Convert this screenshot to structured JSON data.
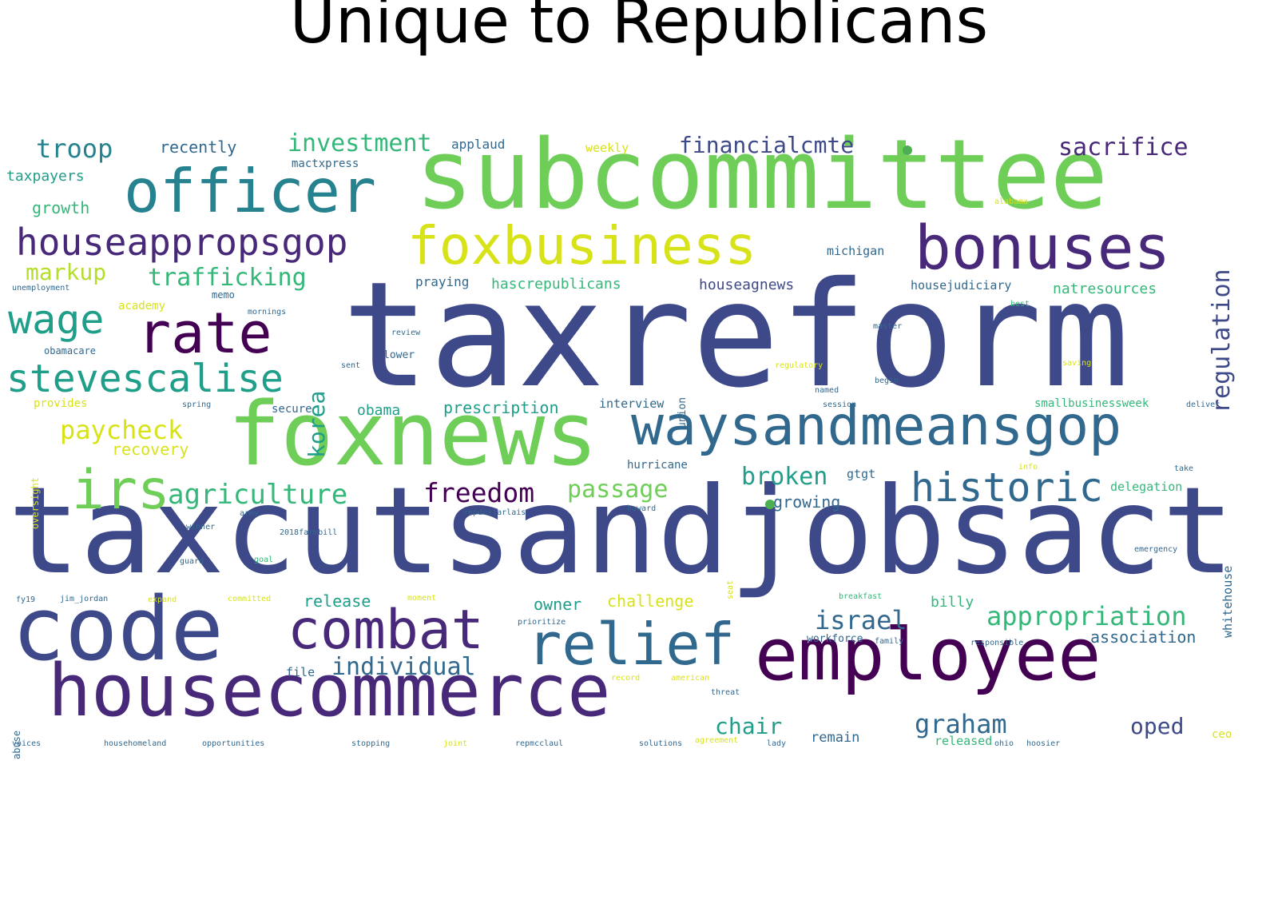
{
  "title": "Unique to Republicans",
  "colors": {
    "v1": "#440154",
    "v2": "#482878",
    "v3": "#3e4989",
    "v4": "#31688e",
    "v5": "#26828e",
    "v6": "#1f9e89",
    "v7": "#35b779",
    "v8": "#6ece58",
    "v9": "#b5de2b",
    "v10": "#d8e219",
    "bullet": "#4caf50"
  },
  "words": [
    {
      "text": "taxreform",
      "color": "v3",
      "weight": 1.0
    },
    {
      "text": "taxcutsandjobsact",
      "color": "v3",
      "weight": 0.95
    },
    {
      "text": "subcommittee",
      "color": "v8",
      "weight": 0.9
    },
    {
      "text": "foxnews",
      "color": "v8",
      "weight": 0.8
    },
    {
      "text": "code",
      "color": "v3",
      "weight": 0.8
    },
    {
      "text": "employee",
      "color": "v1",
      "weight": 0.75
    },
    {
      "text": "housecommerce",
      "color": "v2",
      "weight": 0.7
    },
    {
      "text": "waysandmeansgop",
      "color": "v4",
      "weight": 0.6
    },
    {
      "text": "officer",
      "color": "v5",
      "weight": 0.6
    },
    {
      "text": "bonuses",
      "color": "v2",
      "weight": 0.6
    },
    {
      "text": "foxbusiness",
      "color": "v10",
      "weight": 0.55
    },
    {
      "text": "rate",
      "color": "v1",
      "weight": 0.5
    },
    {
      "text": "relief",
      "color": "v4",
      "weight": 0.5
    },
    {
      "text": "combat",
      "color": "v2",
      "weight": 0.5
    },
    {
      "text": "irs",
      "color": "v8",
      "weight": 0.5
    },
    {
      "text": "houseappropsgop",
      "color": "v2",
      "weight": 0.45
    },
    {
      "text": "stevescalise",
      "color": "v6",
      "weight": 0.45
    },
    {
      "text": "historic",
      "color": "v4",
      "weight": 0.45
    },
    {
      "text": "wage",
      "color": "v6",
      "weight": 0.4
    },
    {
      "text": "agriculture",
      "color": "v7",
      "weight": 0.35
    },
    {
      "text": "freedom",
      "color": "v1",
      "weight": 0.35
    },
    {
      "text": "appropriation",
      "color": "v7",
      "weight": 0.3
    },
    {
      "text": "israel",
      "color": "v4",
      "weight": 0.3
    },
    {
      "text": "individual",
      "color": "v4",
      "weight": 0.3
    },
    {
      "text": "graham",
      "color": "v4",
      "weight": 0.3
    },
    {
      "text": "troop",
      "color": "v5",
      "weight": 0.3
    },
    {
      "text": "investment",
      "color": "v7",
      "weight": 0.3
    },
    {
      "text": "financialcmte",
      "color": "v3",
      "weight": 0.3
    },
    {
      "text": "sacrifice",
      "color": "v2",
      "weight": 0.3
    },
    {
      "text": "regulation",
      "color": "v3",
      "weight": 0.3
    },
    {
      "text": "trafficking",
      "color": "v7",
      "weight": 0.3
    },
    {
      "text": "markup",
      "color": "v9",
      "weight": 0.3
    },
    {
      "text": "paycheck",
      "color": "v10",
      "weight": 0.3
    },
    {
      "text": "passage",
      "color": "v8",
      "weight": 0.3
    },
    {
      "text": "broken",
      "color": "v6",
      "weight": 0.3
    },
    {
      "text": "korea",
      "color": "v6",
      "weight": 0.28
    },
    {
      "text": "chair",
      "color": "v6",
      "weight": 0.3
    },
    {
      "text": "oped",
      "color": "v3",
      "weight": 0.3
    },
    {
      "text": "challenge",
      "color": "v10",
      "weight": 0.2
    },
    {
      "text": "owner",
      "color": "v6",
      "weight": 0.2
    },
    {
      "text": "release",
      "color": "v6",
      "weight": 0.2
    },
    {
      "text": "prescription",
      "color": "v6",
      "weight": 0.2
    },
    {
      "text": "obama",
      "color": "v6",
      "weight": 0.2
    },
    {
      "text": "growing",
      "color": "v4",
      "weight": 0.2
    },
    {
      "text": "association",
      "color": "v4",
      "weight": 0.2
    },
    {
      "text": "recovery",
      "color": "v10",
      "weight": 0.2
    },
    {
      "text": "growth",
      "color": "v7",
      "weight": 0.2
    },
    {
      "text": "taxpayers",
      "color": "v6",
      "weight": 0.18
    },
    {
      "text": "recently",
      "color": "v4",
      "weight": 0.18
    },
    {
      "text": "applaud",
      "color": "v4",
      "weight": 0.14
    },
    {
      "text": "weekly",
      "color": "v10",
      "weight": 0.14
    },
    {
      "text": "mactxpress",
      "color": "v4",
      "weight": 0.13
    },
    {
      "text": "hascrepublicans",
      "color": "v7",
      "weight": 0.18
    },
    {
      "text": "houseagnews",
      "color": "v3",
      "weight": 0.18
    },
    {
      "text": "natresources",
      "color": "v7",
      "weight": 0.18
    },
    {
      "text": "housejudiciary",
      "color": "v4",
      "weight": 0.14
    },
    {
      "text": "praying",
      "color": "v4",
      "weight": 0.15
    },
    {
      "text": "michigan",
      "color": "v4",
      "weight": 0.14
    },
    {
      "text": "smallbusinessweek",
      "color": "v7",
      "weight": 0.15
    },
    {
      "text": "interview",
      "color": "v4",
      "weight": 0.15
    },
    {
      "text": "hurricane",
      "color": "v4",
      "weight": 0.15
    },
    {
      "text": "delegation",
      "color": "v7",
      "weight": 0.15
    },
    {
      "text": "whitehouse",
      "color": "v4",
      "weight": 0.15
    },
    {
      "text": "billy",
      "color": "v7",
      "weight": 0.18
    },
    {
      "text": "workforce",
      "color": "v4",
      "weight": 0.13
    },
    {
      "text": "remain",
      "color": "v4",
      "weight": 0.15
    },
    {
      "text": "released",
      "color": "v7",
      "weight": 0.15
    },
    {
      "text": "file",
      "color": "v4",
      "weight": 0.14
    },
    {
      "text": "academy",
      "color": "v10",
      "weight": 0.14
    },
    {
      "text": "unemployment",
      "color": "v4",
      "weight": 0.1
    },
    {
      "text": "obamacare",
      "color": "v4",
      "weight": 0.12
    },
    {
      "text": "provides",
      "color": "v10",
      "weight": 0.14
    },
    {
      "text": "memo",
      "color": "v4",
      "weight": 0.12
    },
    {
      "text": "mornings",
      "color": "v4",
      "weight": 0.1
    },
    {
      "text": "secure",
      "color": "v4",
      "weight": 0.14
    },
    {
      "text": "union",
      "color": "v4",
      "weight": 0.13
    },
    {
      "text": "lower",
      "color": "v4",
      "weight": 0.13
    },
    {
      "text": "regulatory",
      "color": "v10",
      "weight": 0.1
    },
    {
      "text": "oversight",
      "color": "v10",
      "weight": 0.12
    },
    {
      "text": "alabama",
      "color": "v10",
      "weight": 0.1
    },
    {
      "text": "review",
      "color": "v4",
      "weight": 0.1
    },
    {
      "text": "spring",
      "color": "v4",
      "weight": 0.1
    },
    {
      "text": "session",
      "color": "v4",
      "weight": 0.1
    },
    {
      "text": "begin",
      "color": "v4",
      "weight": 0.1
    },
    {
      "text": "named",
      "color": "v4",
      "weight": 0.1
    },
    {
      "text": "saving",
      "color": "v10",
      "weight": 0.1
    },
    {
      "text": "2018farmbill",
      "color": "v4",
      "weight": 0.1
    },
    {
      "text": "repdesjarlais",
      "color": "v4",
      "weight": 0.1
    },
    {
      "text": "jim_jordan",
      "color": "v4",
      "weight": 0.1
    },
    {
      "text": "committed",
      "color": "v10",
      "weight": 0.1
    },
    {
      "text": "expand",
      "color": "v10",
      "weight": 0.1
    },
    {
      "text": "breakfast",
      "color": "v7",
      "weight": 0.1
    },
    {
      "text": "prioritize",
      "color": "v4",
      "weight": 0.1
    },
    {
      "text": "family",
      "color": "v4",
      "weight": 0.1
    },
    {
      "text": "responsible",
      "color": "v4",
      "weight": 0.1
    },
    {
      "text": "emergency",
      "color": "v4",
      "weight": 0.1
    },
    {
      "text": "threat",
      "color": "v4",
      "weight": 0.1
    },
    {
      "text": "record",
      "color": "v10",
      "weight": 0.1
    },
    {
      "text": "american",
      "color": "v10",
      "weight": 0.1
    },
    {
      "text": "housecommerce_homeland",
      "display": "househomeland",
      "color": "v4",
      "weight": 0.1
    },
    {
      "text": "opportunities",
      "color": "v4",
      "weight": 0.1
    },
    {
      "text": "stopping",
      "color": "v4",
      "weight": 0.1
    },
    {
      "text": "joint",
      "color": "v10",
      "weight": 0.1
    },
    {
      "text": "repmcclaul",
      "color": "v4",
      "weight": 0.1
    },
    {
      "text": "solutions",
      "color": "v4",
      "weight": 0.1
    },
    {
      "text": "agreement",
      "color": "v10",
      "weight": 0.1
    },
    {
      "text": "lady",
      "color": "v4",
      "weight": 0.1
    },
    {
      "text": "ohio",
      "color": "v4",
      "weight": 0.1
    },
    {
      "text": "hoosier",
      "color": "v4",
      "weight": 0.1
    },
    {
      "text": "ceo",
      "color": "v10",
      "weight": 0.14
    },
    {
      "text": "abuse",
      "color": "v4",
      "weight": 0.1
    },
    {
      "text": "fy19",
      "color": "v4",
      "weight": 0.1
    },
    {
      "text": "winner",
      "color": "v4",
      "weight": 0.1
    },
    {
      "text": "gtgt",
      "color": "v4",
      "weight": 0.14
    },
    {
      "text": "deliver",
      "color": "v4",
      "weight": 0.1
    },
    {
      "text": "best",
      "color": "v7",
      "weight": 0.1
    },
    {
      "text": "master",
      "color": "v4",
      "weight": 0.1
    },
    {
      "text": "info",
      "color": "v10",
      "weight": 0.1
    },
    {
      "text": "take",
      "color": "v4",
      "weight": 0.1
    },
    {
      "text": "sent",
      "color": "v4",
      "weight": 0.1
    },
    {
      "text": "army",
      "color": "v4",
      "weight": 0.1
    },
    {
      "text": "guard",
      "color": "v4",
      "weight": 0.1
    },
    {
      "text": "moment",
      "color": "v10",
      "weight": 0.1
    },
    {
      "text": "goal",
      "color": "v7",
      "weight": 0.1
    },
    {
      "text": "howard",
      "color": "v4",
      "weight": 0.1
    },
    {
      "text": "seat",
      "color": "v10",
      "weight": 0.1
    },
    {
      "text": "voices",
      "color": "v4",
      "weight": 0.1
    }
  ]
}
